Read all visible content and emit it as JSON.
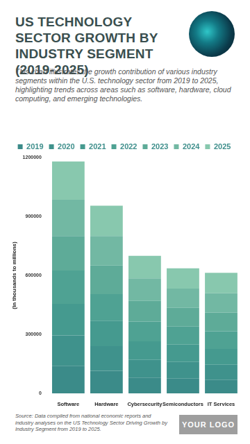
{
  "chart_data": {
    "type": "bar",
    "title": "US TECHNOLOGY SECTOR GROWTH BY INDUSTRY SEGMENT (2019-2025)",
    "subtitle": "This chart illustrates the growth contribution of various industry segments within the U.S. technology sector from 2019 to 2025, highlighting trends across areas such as software, hardware, cloud computing, and emerging technologies.",
    "y_label": "(In thousands to millions)",
    "source": "Source: Data compiled from national economic reports and industry analyses on the US Technology Sector Driving Growth by Industry Segment from 2019 to 2025.",
    "logo": "YOUR LOGO",
    "categories": [
      "Software",
      "Hardware",
      "Cybersecurity",
      "Semiconductors",
      "IT Services"
    ],
    "series": [
      {
        "name": "2019",
        "color": "#3b8b89",
        "values": [
          140000,
          115000,
          80000,
          75000,
          68000
        ]
      },
      {
        "name": "2020",
        "color": "#3f928c",
        "values": [
          155000,
          125000,
          90000,
          85000,
          78000
        ]
      },
      {
        "name": "2021",
        "color": "#459a8f",
        "values": [
          160000,
          130000,
          95000,
          88000,
          80000
        ]
      },
      {
        "name": "2022",
        "color": "#4fa293",
        "values": [
          170000,
          135000,
          100000,
          92000,
          90000
        ]
      },
      {
        "name": "2023",
        "color": "#5eab98",
        "values": [
          175000,
          145000,
          105000,
          95000,
          95000
        ]
      },
      {
        "name": "2024",
        "color": "#72b8a3",
        "values": [
          185000,
          150000,
          115000,
          98000,
          98000
        ]
      },
      {
        "name": "2025",
        "color": "#88c8ae",
        "values": [
          195000,
          155000,
          115000,
          103000,
          104000
        ]
      }
    ],
    "stacked": true,
    "ylim": [
      0,
      1200000
    ],
    "yticks": [
      0,
      300000,
      600000,
      900000,
      1200000
    ],
    "grid": false,
    "legend": "top"
  }
}
